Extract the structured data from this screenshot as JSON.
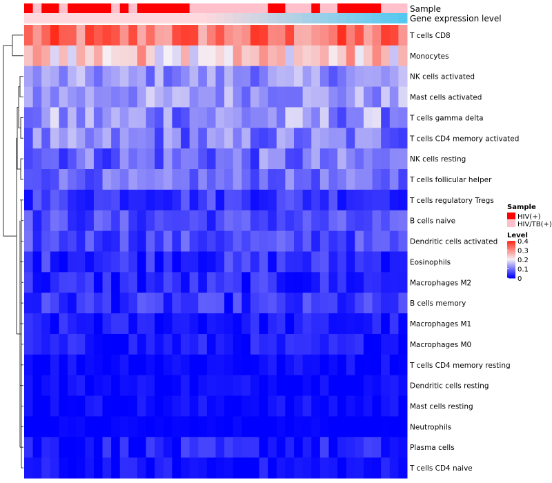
{
  "chart_data": {
    "type": "heatmap",
    "annotation_tracks": {
      "sample_label": "Sample",
      "gene_label": "Gene expression level"
    },
    "rows": [
      "T cells CD8",
      "Monocytes",
      "NK cells activated",
      "Mast cells activated",
      "T cells gamma delta",
      "T cells CD4 memory activated",
      "NK cells resting",
      "T cells follicular helper",
      "T cells regulatory  Tregs",
      "B cells naive",
      "Dendritic cells activated",
      "Eosinophils",
      "Macrophages M2",
      "B cells memory",
      "Macrophages M1",
      "Macrophages M0",
      "T cells CD4 memory resting",
      "Dendritic cells resting",
      "Mast cells resting",
      "Neutrophils",
      "Plasma cells",
      "T cells CD4 naive"
    ],
    "n_columns": 44,
    "sample_groups": [
      "HIV(+)",
      "HIV/TB(+)"
    ],
    "sample_colors": {
      "HIV(+)": "#ff0000",
      "HIV/TB(+)": "#ffc0cb"
    },
    "sample_annotation": [
      0,
      1,
      0,
      0,
      1,
      0,
      0,
      0,
      0,
      0,
      1,
      0,
      1,
      0,
      0,
      0,
      0,
      0,
      0,
      1,
      1,
      1,
      1,
      1,
      1,
      1,
      1,
      1,
      0,
      0,
      1,
      1,
      1,
      0,
      1,
      1,
      0,
      0,
      0,
      0,
      0,
      1,
      1,
      1
    ],
    "gene_expression_gradient": [
      "#ffd9dd",
      "#55c8f0"
    ],
    "row_profiles": [
      {
        "mean": 0.32,
        "spread": 0.08
      },
      {
        "mean": 0.24,
        "spread": 0.08
      },
      {
        "mean": 0.12,
        "spread": 0.05
      },
      {
        "mean": 0.13,
        "spread": 0.05
      },
      {
        "mean": 0.12,
        "spread": 0.07
      },
      {
        "mean": 0.1,
        "spread": 0.06
      },
      {
        "mean": 0.09,
        "spread": 0.06
      },
      {
        "mean": 0.09,
        "spread": 0.04
      },
      {
        "mean": 0.05,
        "spread": 0.04
      },
      {
        "mean": 0.06,
        "spread": 0.04
      },
      {
        "mean": 0.06,
        "spread": 0.04
      },
      {
        "mean": 0.04,
        "spread": 0.04
      },
      {
        "mean": 0.03,
        "spread": 0.04
      },
      {
        "mean": 0.04,
        "spread": 0.04
      },
      {
        "mean": 0.02,
        "spread": 0.03
      },
      {
        "mean": 0.02,
        "spread": 0.03
      },
      {
        "mean": 0.01,
        "spread": 0.02
      },
      {
        "mean": 0.01,
        "spread": 0.02
      },
      {
        "mean": 0.01,
        "spread": 0.02
      },
      {
        "mean": 0.0,
        "spread": 0.01
      },
      {
        "mean": 0.02,
        "spread": 0.04
      },
      {
        "mean": 0.01,
        "spread": 0.03
      }
    ],
    "color_scale": {
      "min": 0,
      "mid": 0.2,
      "max": 0.4,
      "low_color": "#0000ff",
      "mid_color": "#f5f0f5",
      "high_color": "#ff2b1a"
    },
    "legend": {
      "sample_title": "Sample",
      "level_title": "Level",
      "level_ticks": [
        "0.4",
        "0.3",
        "0.2",
        "0.1",
        "0"
      ],
      "position": "right"
    },
    "dendrogram": "rows"
  }
}
